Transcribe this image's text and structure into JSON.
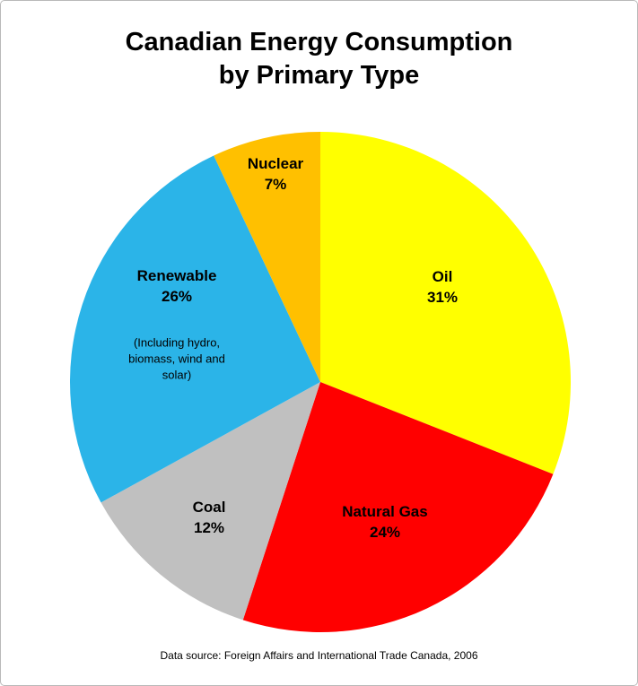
{
  "chart_data": {
    "type": "pie",
    "title": "Canadian Energy Consumption by Primary Type",
    "title_lines": [
      "Canadian Energy Consumption",
      "by Primary Type"
    ],
    "source": "Data source: Foreign Affairs and International Trade Canada, 2006",
    "start_angle_deg": -90,
    "direction": "clockwise",
    "legend": "none",
    "slices": [
      {
        "id": "oil",
        "label": "Oil",
        "value": 31,
        "pct_label": "31%",
        "color": "#FFFF00"
      },
      {
        "id": "natural-gas",
        "label": "Natural Gas",
        "value": 24,
        "pct_label": "24%",
        "color": "#FF0000"
      },
      {
        "id": "coal",
        "label": "Coal",
        "value": 12,
        "pct_label": "12%",
        "color": "#C0C0C0"
      },
      {
        "id": "renewable",
        "label": "Renewable",
        "value": 26,
        "pct_label": "26%",
        "color": "#2BB4E8",
        "note": "(Including hydro, biomass, wind and solar)"
      },
      {
        "id": "nuclear",
        "label": "Nuclear",
        "value": 7,
        "pct_label": "7%",
        "color": "#FFC000"
      }
    ]
  }
}
